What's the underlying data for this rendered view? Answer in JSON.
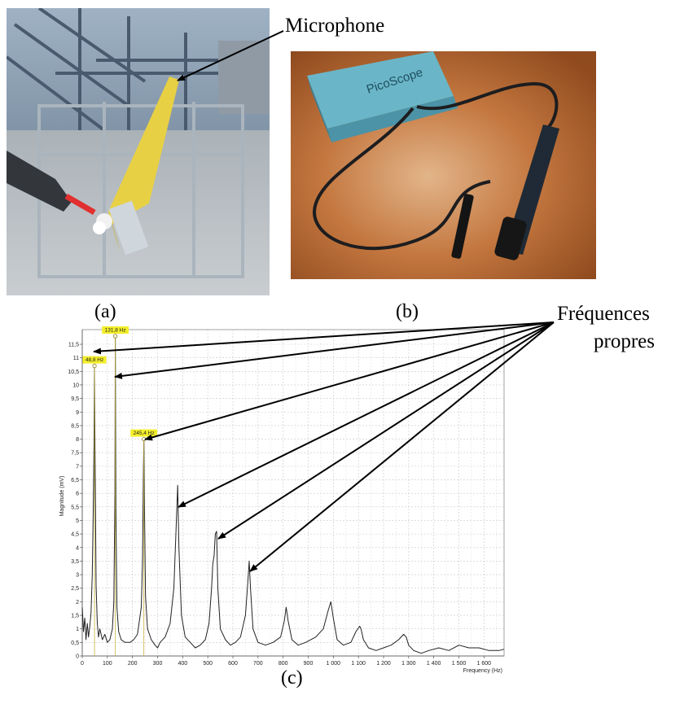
{
  "labels": {
    "a": "(a)",
    "b": "(b)",
    "c": "(c)",
    "microphone": "Microphone",
    "freq_line1": "Fréquences",
    "freq_line2": "propres"
  },
  "photo_b": {
    "device_brand": "PicoScope"
  },
  "chart_data": {
    "type": "line",
    "xlabel": "Frequency (Hz)",
    "ylabel": "Magnitude (mV)",
    "xlim": [
      0,
      1680
    ],
    "ylim": [
      0,
      11.8
    ],
    "xticks": [
      0,
      100,
      200,
      300,
      400,
      500,
      600,
      700,
      800,
      900,
      1000,
      1100,
      1200,
      1300,
      1400,
      1500,
      1600
    ],
    "xtick_labels": [
      "0",
      "100",
      "200",
      "300",
      "400",
      "500",
      "600",
      "700",
      "800",
      "900",
      "1 000",
      "1 100",
      "1 200",
      "1 300",
      "1 400",
      "1 500",
      "1 600"
    ],
    "yticks": [
      0,
      0.5,
      1,
      1.5,
      2,
      2.5,
      3,
      3.5,
      4,
      4.5,
      5,
      5.5,
      6,
      6.5,
      7,
      7.5,
      8,
      8.5,
      9,
      9.5,
      10,
      10.5,
      11,
      11.5
    ],
    "ytick_labels": [
      "0",
      "0,5",
      "1",
      "1,5",
      "2",
      "2,5",
      "3",
      "3,5",
      "4",
      "4,5",
      "5",
      "5,5",
      "6",
      "6,5",
      "7",
      "7,5",
      "8",
      "8,5",
      "9",
      "9,5",
      "10",
      "10,5",
      "11",
      "11,5"
    ],
    "grid": true,
    "peaks": [
      {
        "x": 48.8,
        "y": 10.7,
        "label": "48,8 Hz"
      },
      {
        "x": 131.8,
        "y": 11.8,
        "label": "131,8 Hz"
      },
      {
        "x": 245.4,
        "y": 8.0,
        "label": "245,4 Hz"
      }
    ],
    "series": [
      {
        "color": "#222222",
        "x": [
          0,
          5,
          10,
          15,
          20,
          25,
          30,
          35,
          40,
          44,
          47,
          48.8,
          51,
          55,
          60,
          65,
          70,
          80,
          90,
          100,
          110,
          120,
          126,
          130,
          131.8,
          134,
          138,
          145,
          155,
          170,
          190,
          205,
          220,
          235,
          240,
          244,
          245.4,
          247,
          252,
          260,
          275,
          290,
          300,
          310,
          330,
          350,
          365,
          375,
          380,
          385,
          395,
          410,
          430,
          450,
          470,
          490,
          505,
          515,
          520,
          525,
          530,
          535,
          540,
          550,
          570,
          590,
          610,
          630,
          650,
          660,
          665,
          670,
          680,
          700,
          730,
          760,
          790,
          805,
          812,
          820,
          835,
          860,
          890,
          930,
          960,
          980,
          990,
          1000,
          1015,
          1040,
          1070,
          1090,
          1105,
          1110,
          1120,
          1140,
          1170,
          1200,
          1230,
          1260,
          1280,
          1290,
          1300,
          1320,
          1350,
          1380,
          1420,
          1460,
          1500,
          1540,
          1580,
          1620,
          1660,
          1680
        ],
        "y": [
          1.8,
          0.9,
          1.4,
          0.6,
          1.2,
          0.7,
          1.1,
          1.6,
          3.0,
          5.6,
          8.0,
          10.7,
          7.5,
          2.6,
          1.2,
          0.7,
          1.0,
          0.6,
          0.8,
          0.5,
          0.6,
          1.0,
          2.0,
          6.0,
          11.8,
          5.5,
          1.8,
          0.9,
          0.6,
          0.5,
          0.5,
          0.6,
          0.8,
          1.8,
          3.5,
          7.0,
          8.0,
          6.0,
          2.2,
          1.0,
          0.6,
          0.4,
          0.3,
          0.5,
          0.7,
          1.2,
          2.5,
          5.0,
          6.3,
          4.0,
          1.5,
          0.7,
          0.5,
          0.3,
          0.4,
          0.6,
          1.2,
          2.5,
          3.4,
          3.7,
          4.5,
          4.6,
          2.5,
          1.0,
          0.6,
          0.4,
          0.5,
          0.7,
          1.5,
          2.8,
          3.5,
          2.5,
          1.0,
          0.5,
          0.4,
          0.5,
          0.7,
          1.3,
          1.8,
          1.3,
          0.6,
          0.4,
          0.5,
          0.7,
          1.0,
          1.7,
          2.0,
          1.4,
          0.6,
          0.4,
          0.5,
          0.9,
          1.1,
          1.0,
          0.6,
          0.3,
          0.2,
          0.3,
          0.4,
          0.6,
          0.8,
          0.7,
          0.4,
          0.2,
          0.1,
          0.2,
          0.3,
          0.2,
          0.4,
          0.3,
          0.3,
          0.2,
          0.2,
          0.25
        ]
      }
    ]
  }
}
